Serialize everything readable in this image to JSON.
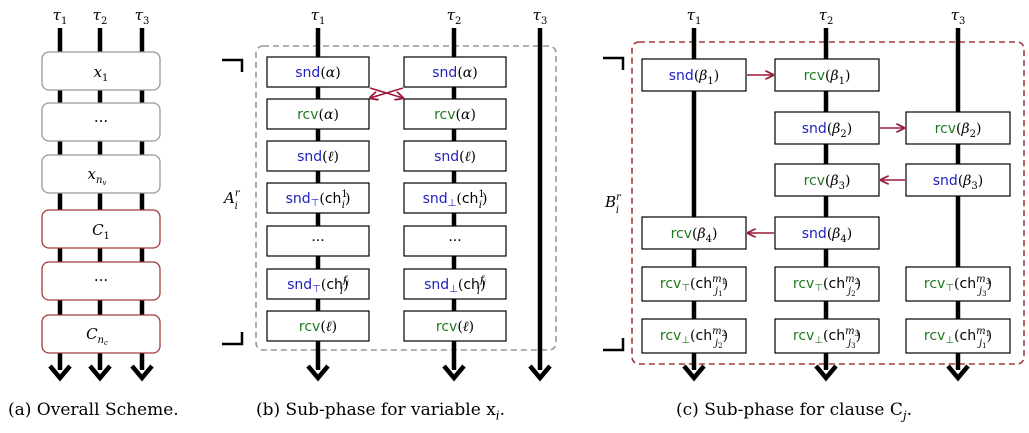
{
  "threads": {
    "t1": "τ1",
    "t2": "τ2",
    "t3": "τ3",
    "sym": "τ"
  },
  "panel_a": {
    "blocks": [
      {
        "main": "x",
        "sub": "1"
      },
      {
        "main": "···",
        "sub": ""
      },
      {
        "main": "x",
        "sub": "n",
        "subsub": "v"
      },
      {
        "main": "C",
        "sub": "1"
      },
      {
        "main": "···",
        "sub": ""
      },
      {
        "main": "C",
        "sub": "n",
        "subsub": "c"
      }
    ],
    "caption": "(a) Overall Scheme."
  },
  "panel_b": {
    "phase_label": {
      "main": "A",
      "sup": "r",
      "sub": "i"
    },
    "caption": "(b) Sub-phase for variable x",
    "caption_sub": "i",
    "caption_end": "."
  },
  "panel_c": {
    "phase_label": {
      "main": "B",
      "sup": "r",
      "sub": "i"
    },
    "caption": "(c) Sub-phase for clause C",
    "caption_sub": "j",
    "caption_end": "."
  },
  "ops": {
    "snd": "snd",
    "rcv": "rcv",
    "ch": "ch",
    "lparen": "(",
    "rparen": ")",
    "alpha": "α",
    "ell": "ℓ",
    "beta": "β",
    "top": "⊤",
    "bot": "⊥",
    "dots": "···",
    "i": "i",
    "j": "j",
    "m": "m",
    "n1": "1",
    "n2": "2",
    "n3": "3",
    "n4": "4",
    "f": "f"
  },
  "colors": {
    "snd": "#1f1fbf",
    "rcv": "#1f7a1f",
    "arrow": "#9b1b3a",
    "clause_border": "#a33a3a",
    "var_border": "#999999",
    "dashed_b": "#999999",
    "dashed_c": "#a33a3a"
  }
}
